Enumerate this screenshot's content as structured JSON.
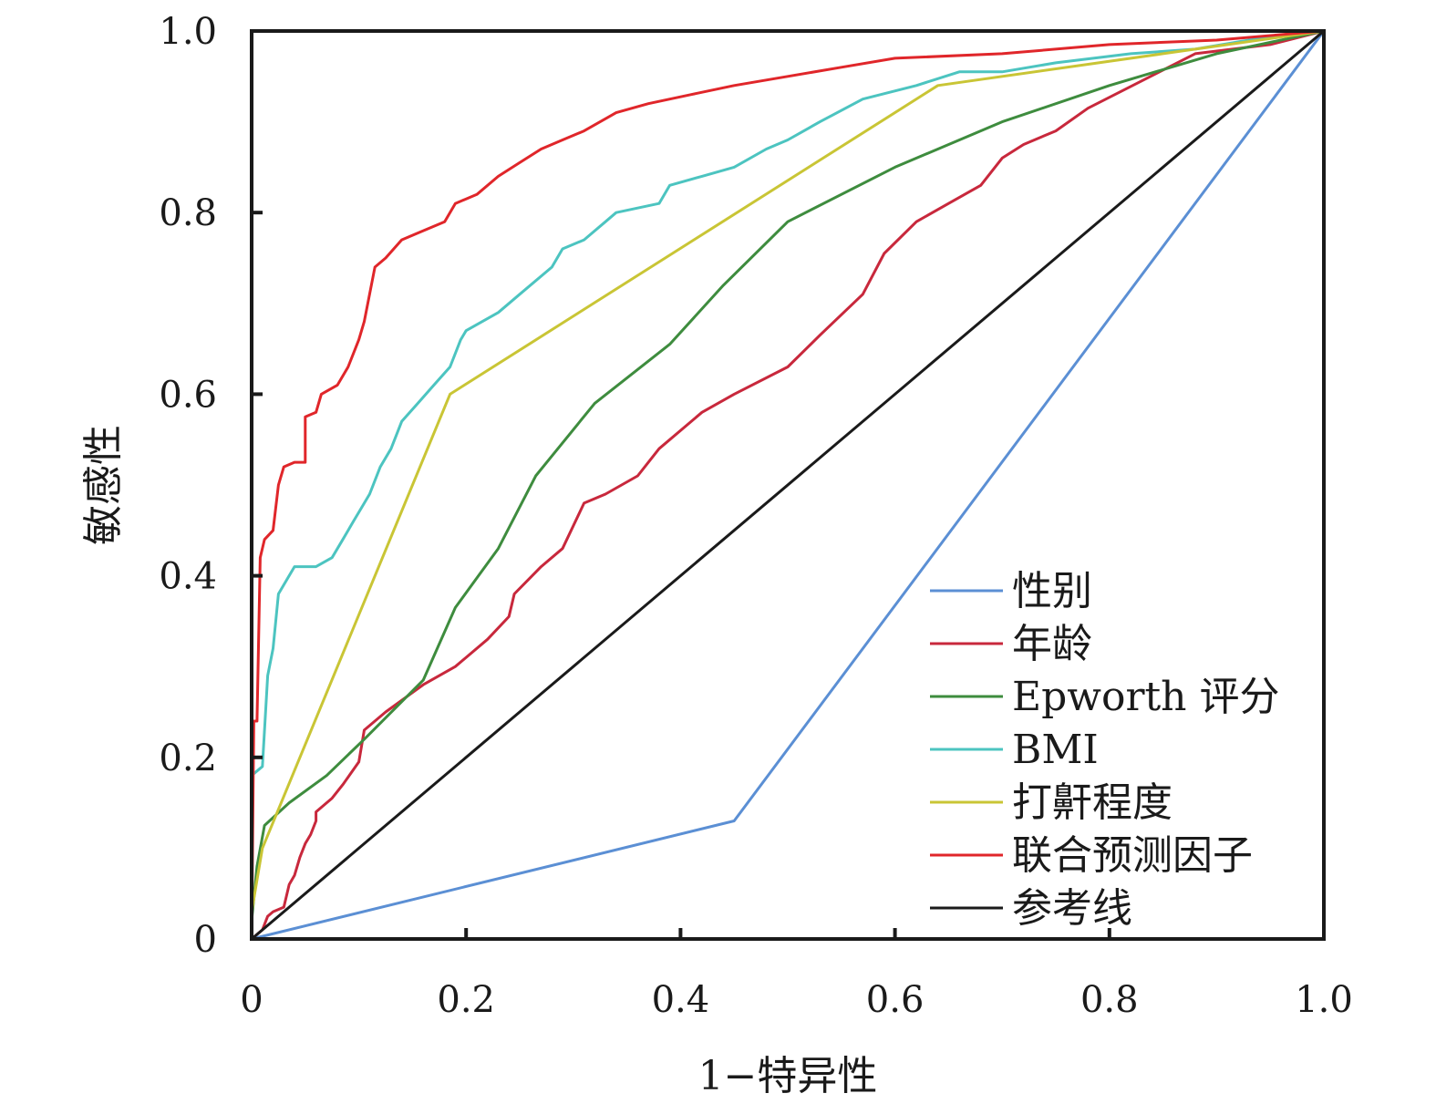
{
  "chart_data": {
    "type": "line",
    "title": "",
    "xlabel": "1−特异性",
    "ylabel": "敏感性",
    "xlim": [
      0,
      1
    ],
    "ylim": [
      0,
      1
    ],
    "x_ticks": [
      0,
      0.2,
      0.4,
      0.6,
      0.8,
      1.0
    ],
    "x_tick_labels": [
      "0",
      "0.2",
      "0.4",
      "0.6",
      "0.8",
      "1.0"
    ],
    "y_ticks": [
      0,
      0.2,
      0.4,
      0.6,
      0.8,
      1.0
    ],
    "y_tick_labels": [
      "0",
      "0.2",
      "0.4",
      "0.6",
      "0.8",
      "1.0"
    ],
    "grid": false,
    "legend_position": "bottom-right",
    "series": [
      {
        "name": "性别",
        "color": "#5b8fd4",
        "points": [
          [
            0,
            0
          ],
          [
            0.45,
            0.13
          ],
          [
            1.0,
            1.0
          ]
        ]
      },
      {
        "name": "年龄",
        "color": "#c8283c",
        "points": [
          [
            0,
            0
          ],
          [
            0.005,
            0.005
          ],
          [
            0.01,
            0.01
          ],
          [
            0.015,
            0.025
          ],
          [
            0.02,
            0.03
          ],
          [
            0.03,
            0.035
          ],
          [
            0.035,
            0.06
          ],
          [
            0.04,
            0.07
          ],
          [
            0.045,
            0.09
          ],
          [
            0.05,
            0.105
          ],
          [
            0.055,
            0.115
          ],
          [
            0.06,
            0.13
          ],
          [
            0.06,
            0.14
          ],
          [
            0.07,
            0.15
          ],
          [
            0.075,
            0.155
          ],
          [
            0.085,
            0.17
          ],
          [
            0.1,
            0.195
          ],
          [
            0.105,
            0.23
          ],
          [
            0.125,
            0.25
          ],
          [
            0.16,
            0.28
          ],
          [
            0.19,
            0.3
          ],
          [
            0.22,
            0.33
          ],
          [
            0.24,
            0.355
          ],
          [
            0.245,
            0.38
          ],
          [
            0.27,
            0.41
          ],
          [
            0.29,
            0.43
          ],
          [
            0.31,
            0.48
          ],
          [
            0.33,
            0.49
          ],
          [
            0.36,
            0.51
          ],
          [
            0.38,
            0.54
          ],
          [
            0.42,
            0.58
          ],
          [
            0.45,
            0.6
          ],
          [
            0.5,
            0.63
          ],
          [
            0.53,
            0.665
          ],
          [
            0.57,
            0.71
          ],
          [
            0.59,
            0.755
          ],
          [
            0.62,
            0.79
          ],
          [
            0.65,
            0.81
          ],
          [
            0.68,
            0.83
          ],
          [
            0.7,
            0.86
          ],
          [
            0.72,
            0.875
          ],
          [
            0.75,
            0.89
          ],
          [
            0.78,
            0.915
          ],
          [
            0.83,
            0.945
          ],
          [
            0.88,
            0.975
          ],
          [
            0.95,
            0.985
          ],
          [
            1.0,
            1.0
          ]
        ]
      },
      {
        "name": "Epworth 评分",
        "color": "#3e8c3e",
        "points": [
          [
            0,
            0.02
          ],
          [
            0.005,
            0.08
          ],
          [
            0.012,
            0.125
          ],
          [
            0.035,
            0.15
          ],
          [
            0.07,
            0.18
          ],
          [
            0.105,
            0.22
          ],
          [
            0.16,
            0.285
          ],
          [
            0.19,
            0.365
          ],
          [
            0.23,
            0.43
          ],
          [
            0.265,
            0.51
          ],
          [
            0.32,
            0.59
          ],
          [
            0.39,
            0.655
          ],
          [
            0.44,
            0.72
          ],
          [
            0.5,
            0.79
          ],
          [
            0.6,
            0.85
          ],
          [
            0.7,
            0.9
          ],
          [
            0.8,
            0.94
          ],
          [
            0.9,
            0.975
          ],
          [
            1.0,
            1.0
          ]
        ]
      },
      {
        "name": "BMI",
        "color": "#4cc4c0",
        "points": [
          [
            0,
            0.18
          ],
          [
            0.01,
            0.19
          ],
          [
            0.015,
            0.29
          ],
          [
            0.02,
            0.32
          ],
          [
            0.025,
            0.38
          ],
          [
            0.04,
            0.41
          ],
          [
            0.06,
            0.41
          ],
          [
            0.075,
            0.42
          ],
          [
            0.085,
            0.44
          ],
          [
            0.095,
            0.46
          ],
          [
            0.1,
            0.47
          ],
          [
            0.11,
            0.49
          ],
          [
            0.12,
            0.52
          ],
          [
            0.13,
            0.54
          ],
          [
            0.14,
            0.57
          ],
          [
            0.155,
            0.59
          ],
          [
            0.17,
            0.61
          ],
          [
            0.185,
            0.63
          ],
          [
            0.195,
            0.66
          ],
          [
            0.2,
            0.67
          ],
          [
            0.23,
            0.69
          ],
          [
            0.25,
            0.71
          ],
          [
            0.28,
            0.74
          ],
          [
            0.29,
            0.76
          ],
          [
            0.31,
            0.77
          ],
          [
            0.33,
            0.79
          ],
          [
            0.34,
            0.8
          ],
          [
            0.38,
            0.81
          ],
          [
            0.39,
            0.83
          ],
          [
            0.42,
            0.84
          ],
          [
            0.45,
            0.85
          ],
          [
            0.48,
            0.87
          ],
          [
            0.5,
            0.88
          ],
          [
            0.53,
            0.9
          ],
          [
            0.57,
            0.925
          ],
          [
            0.62,
            0.94
          ],
          [
            0.66,
            0.955
          ],
          [
            0.7,
            0.955
          ],
          [
            0.75,
            0.965
          ],
          [
            0.82,
            0.975
          ],
          [
            0.88,
            0.98
          ],
          [
            0.93,
            0.99
          ],
          [
            1.0,
            1.0
          ]
        ]
      },
      {
        "name": "打鼾程度",
        "color": "#c9c535",
        "points": [
          [
            0,
            0.03
          ],
          [
            0.01,
            0.1
          ],
          [
            0.185,
            0.6
          ],
          [
            0.64,
            0.94
          ],
          [
            0.85,
            0.975
          ],
          [
            1.0,
            1.0
          ]
        ]
      },
      {
        "name": "联合预测因子",
        "color": "#e0262a",
        "points": [
          [
            0,
            0
          ],
          [
            0.002,
            0.24
          ],
          [
            0.005,
            0.24
          ],
          [
            0.008,
            0.42
          ],
          [
            0.012,
            0.44
          ],
          [
            0.02,
            0.45
          ],
          [
            0.025,
            0.5
          ],
          [
            0.03,
            0.52
          ],
          [
            0.04,
            0.525
          ],
          [
            0.05,
            0.525
          ],
          [
            0.05,
            0.575
          ],
          [
            0.06,
            0.58
          ],
          [
            0.065,
            0.6
          ],
          [
            0.08,
            0.61
          ],
          [
            0.09,
            0.63
          ],
          [
            0.1,
            0.66
          ],
          [
            0.105,
            0.68
          ],
          [
            0.115,
            0.74
          ],
          [
            0.125,
            0.75
          ],
          [
            0.14,
            0.77
          ],
          [
            0.16,
            0.78
          ],
          [
            0.18,
            0.79
          ],
          [
            0.19,
            0.81
          ],
          [
            0.21,
            0.82
          ],
          [
            0.23,
            0.84
          ],
          [
            0.25,
            0.855
          ],
          [
            0.27,
            0.87
          ],
          [
            0.29,
            0.88
          ],
          [
            0.31,
            0.89
          ],
          [
            0.34,
            0.91
          ],
          [
            0.37,
            0.92
          ],
          [
            0.41,
            0.93
          ],
          [
            0.45,
            0.94
          ],
          [
            0.5,
            0.95
          ],
          [
            0.55,
            0.96
          ],
          [
            0.6,
            0.97
          ],
          [
            0.7,
            0.975
          ],
          [
            0.8,
            0.985
          ],
          [
            0.9,
            0.99
          ],
          [
            1.0,
            1.0
          ]
        ]
      },
      {
        "name": "参考线",
        "color": "#1a1a1a",
        "points": [
          [
            0,
            0
          ],
          [
            1.0,
            1.0
          ]
        ]
      }
    ]
  }
}
